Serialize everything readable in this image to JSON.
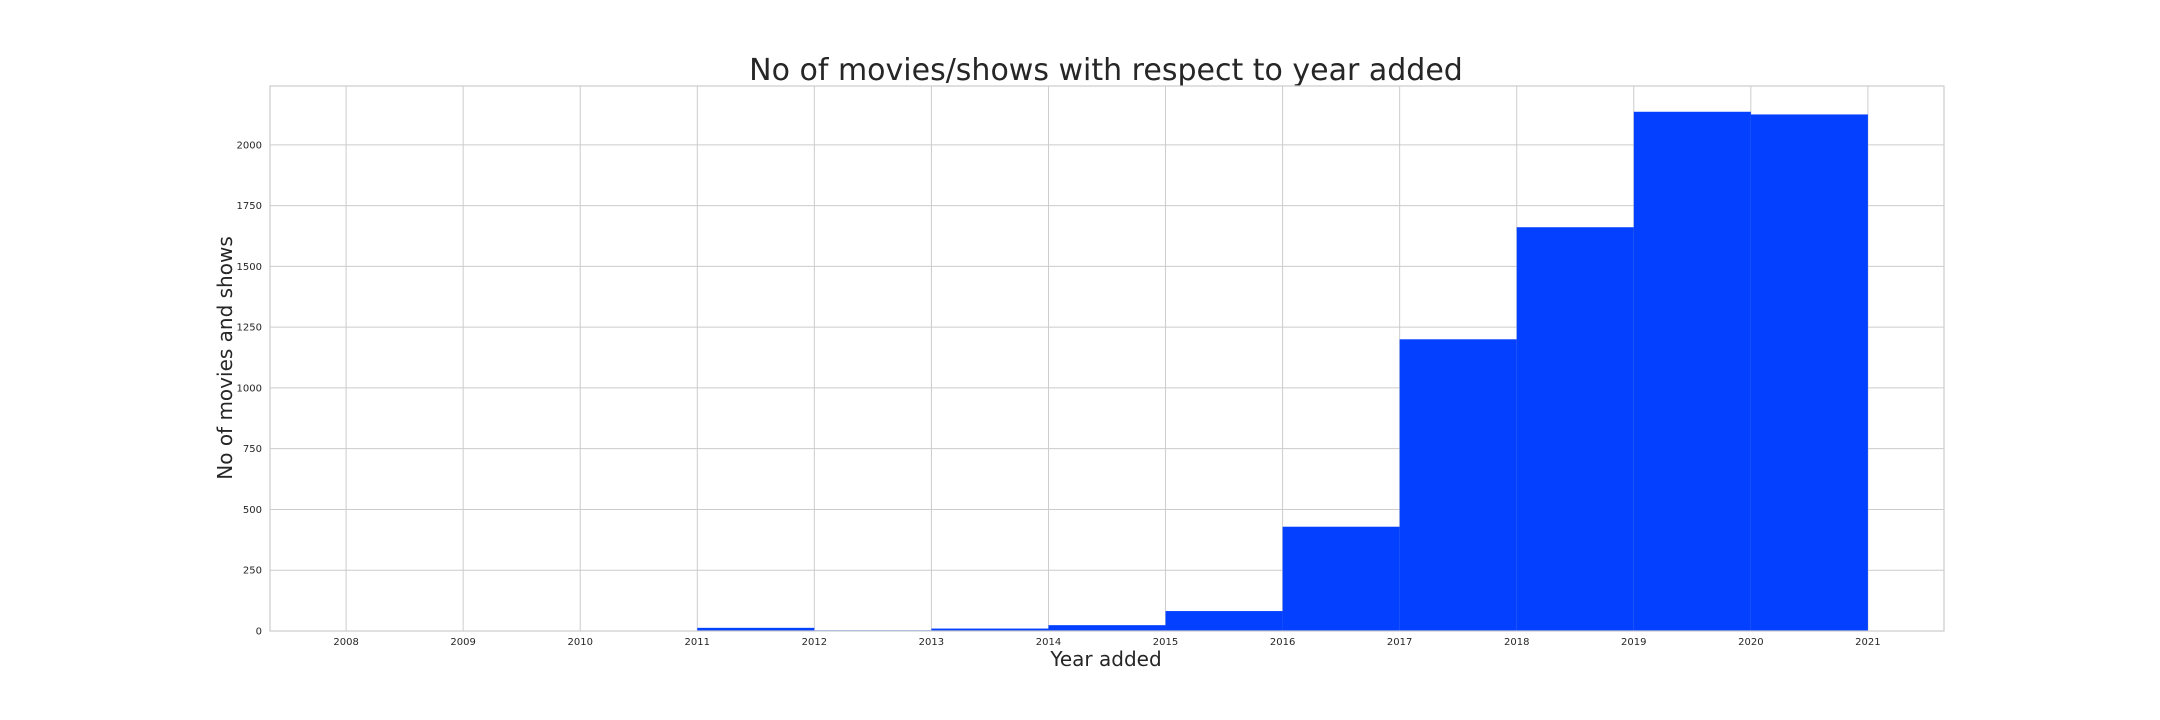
{
  "chart_data": {
    "type": "bar",
    "title": "No of movies/shows with respect to year added",
    "xlabel": "Year added",
    "ylabel": "No of movies and shows",
    "bins": [
      {
        "start": 2011,
        "end": 2012,
        "value": 13
      },
      {
        "start": 2012,
        "end": 2013,
        "value": 3
      },
      {
        "start": 2013,
        "end": 2014,
        "value": 10
      },
      {
        "start": 2014,
        "end": 2015,
        "value": 24
      },
      {
        "start": 2015,
        "end": 2016,
        "value": 82
      },
      {
        "start": 2016,
        "end": 2017,
        "value": 429
      },
      {
        "start": 2017,
        "end": 2018,
        "value": 1200
      },
      {
        "start": 2018,
        "end": 2019,
        "value": 1661
      },
      {
        "start": 2019,
        "end": 2020,
        "value": 2136
      },
      {
        "start": 2020,
        "end": 2021,
        "value": 2125
      }
    ],
    "xticks": [
      "2008",
      "2009",
      "2010",
      "2011",
      "2012",
      "2013",
      "2014",
      "2015",
      "2016",
      "2017",
      "2018",
      "2019",
      "2020",
      "2021"
    ],
    "yticks": [
      "0",
      "250",
      "500",
      "750",
      "1000",
      "1250",
      "1500",
      "1750",
      "2000"
    ],
    "xlim": [
      2007.35,
      2021.65
    ],
    "ylim": [
      0,
      2242
    ],
    "bar_color": "#0340ff",
    "grid": true
  }
}
